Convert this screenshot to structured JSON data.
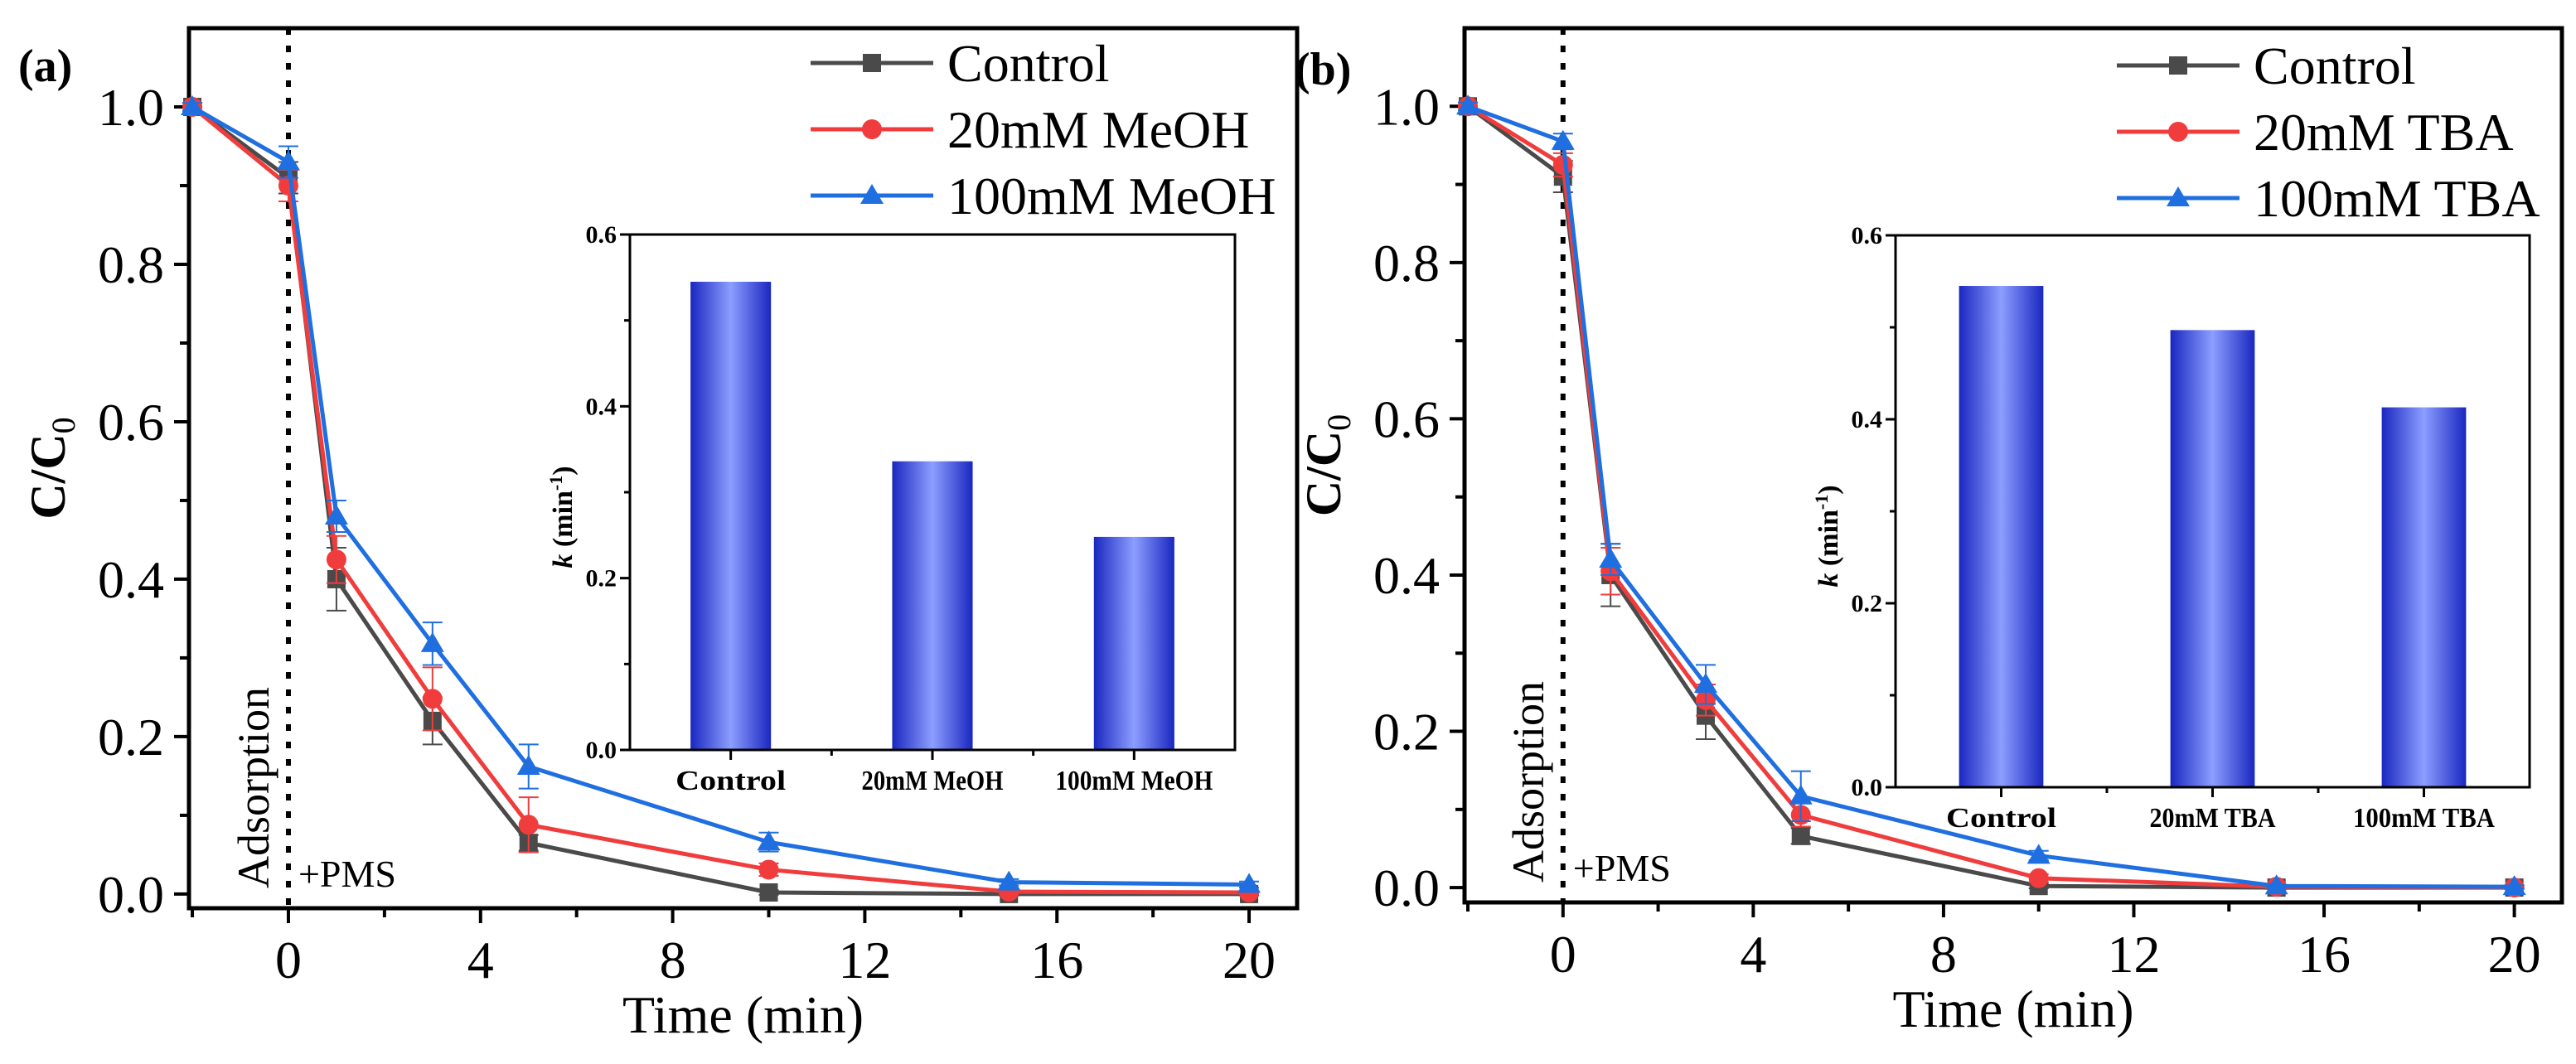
{
  "colors": {
    "control": "#4a4a4a",
    "low": "#f03c3c",
    "high": "#1f6fe0",
    "bar_dark": "#1a27c0",
    "bar_light": "#8c9eff"
  },
  "chart_data": [
    {
      "type": "line",
      "panel_label": "(a)",
      "xlabel": "Time (min)",
      "ylabel": {
        "text": "C/C",
        "sub": "0"
      },
      "xlim": [
        -2.07,
        21.0
      ],
      "ylim": [
        -0.018,
        1.1
      ],
      "xticks": [
        0,
        4,
        8,
        12,
        16,
        20
      ],
      "yticks": [
        "0.0",
        "0.2",
        "0.4",
        "0.6",
        "0.8",
        "1.0"
      ],
      "legend_position": "top-right",
      "annotations": {
        "vertical_line_x": 0,
        "left_text": "Adsorption",
        "right_text": "+PMS"
      },
      "x": [
        -2,
        0,
        1,
        3,
        5,
        10,
        15,
        20
      ],
      "series": [
        {
          "name": "Control",
          "marker": "square",
          "color_key": "control",
          "values": [
            1.0,
            0.91,
            0.4,
            0.22,
            0.065,
            0.002,
            0.0,
            0.0
          ],
          "err": [
            0.005,
            0.02,
            0.04,
            0.03,
            0.01,
            0.003,
            0.002,
            0.002
          ]
        },
        {
          "name": "20mM MeOH",
          "marker": "circle",
          "color_key": "low",
          "values": [
            1.0,
            0.9,
            0.425,
            0.248,
            0.088,
            0.031,
            0.003,
            0.002
          ],
          "err": [
            0.005,
            0.02,
            0.03,
            0.04,
            0.035,
            0.008,
            0.003,
            0.002
          ]
        },
        {
          "name": "100mM MeOH",
          "marker": "triangle",
          "color_key": "high",
          "values": [
            1.0,
            0.93,
            0.48,
            0.318,
            0.162,
            0.066,
            0.015,
            0.012
          ],
          "err": [
            0.005,
            0.02,
            0.02,
            0.027,
            0.028,
            0.012,
            0.004,
            0.004
          ]
        }
      ],
      "inset": {
        "type": "bar",
        "ylabel": {
          "italic": "k",
          "text": " (min",
          "sup": "-1",
          "close": ")"
        },
        "ylim": [
          0,
          0.6
        ],
        "yticks": [
          "0.0",
          "0.2",
          "0.4",
          "0.6"
        ],
        "categories": [
          "Control",
          "20mM MeOH",
          "100mM MeOH"
        ],
        "values": [
          0.545,
          0.336,
          0.248
        ]
      }
    },
    {
      "type": "line",
      "panel_label": "(b)",
      "xlabel": "Time (min)",
      "ylabel": {
        "text": "C/C",
        "sub": "0"
      },
      "xlim": [
        -2.07,
        21.0
      ],
      "ylim": [
        -0.019,
        1.1
      ],
      "xticks": [
        0,
        4,
        8,
        12,
        16,
        20
      ],
      "yticks": [
        "0.0",
        "0.2",
        "0.4",
        "0.6",
        "0.8",
        "1.0"
      ],
      "legend_position": "top-right",
      "annotations": {
        "vertical_line_x": 0,
        "left_text": "Adsorption",
        "right_text": "+PMS"
      },
      "x": [
        -2,
        0,
        1,
        3,
        5,
        10,
        15,
        20
      ],
      "series": [
        {
          "name": "Control",
          "marker": "square",
          "color_key": "control",
          "values": [
            1.0,
            0.91,
            0.4,
            0.22,
            0.066,
            0.002,
            0.0,
            0.0
          ],
          "err": [
            0.005,
            0.02,
            0.04,
            0.03,
            0.01,
            0.003,
            0.002,
            0.002
          ]
        },
        {
          "name": "20mM TBA",
          "marker": "circle",
          "color_key": "low",
          "values": [
            1.0,
            0.925,
            0.405,
            0.24,
            0.093,
            0.012,
            0.001,
            0.0
          ],
          "err": [
            0.005,
            0.015,
            0.03,
            0.02,
            0.015,
            0.005,
            0.002,
            0.002
          ]
        },
        {
          "name": "100mM TBA",
          "marker": "triangle",
          "color_key": "high",
          "values": [
            1.0,
            0.955,
            0.42,
            0.26,
            0.117,
            0.041,
            0.002,
            0.001
          ],
          "err": [
            0.005,
            0.01,
            0.02,
            0.025,
            0.032,
            0.006,
            0.002,
            0.002
          ]
        }
      ],
      "inset": {
        "type": "bar",
        "ylabel": {
          "italic": "k",
          "text": " (min",
          "sup": "-1",
          "close": ")"
        },
        "ylim": [
          0,
          0.6
        ],
        "yticks": [
          "0.0",
          "0.2",
          "0.4",
          "0.6"
        ],
        "categories": [
          "Control",
          "20mM TBA",
          "100mM TBA"
        ],
        "values": [
          0.545,
          0.497,
          0.413
        ]
      }
    }
  ]
}
